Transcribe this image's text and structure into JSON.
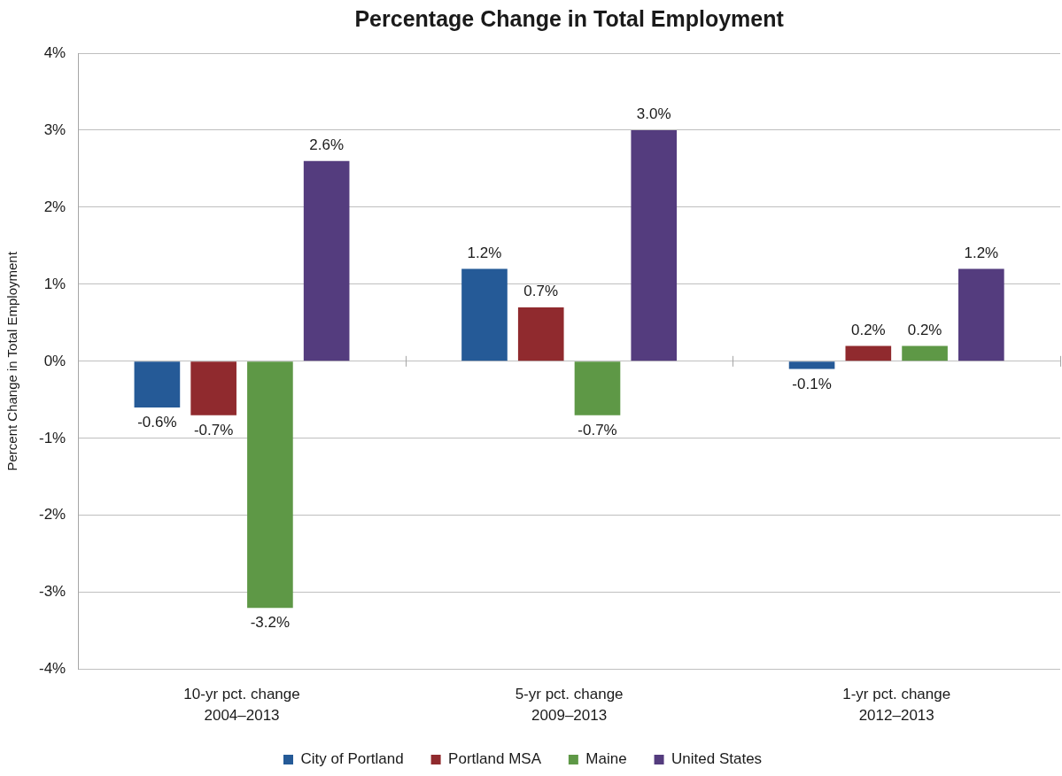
{
  "chart_data": {
    "type": "bar",
    "title": "Percentage Change in Total Employment",
    "ylabel": "Percent Change in Total Employment",
    "categories": [
      "10-yr pct. change\n2004–2013",
      "5-yr pct. change\n2009–2013",
      "1-yr pct. change\n2012–2013"
    ],
    "series": [
      {
        "name": "City of Portland",
        "color": "#255a97",
        "values": [
          -0.6,
          1.2,
          -0.1
        ],
        "value_labels": [
          "-0.6%",
          "1.2%",
          "-0.1%"
        ]
      },
      {
        "name": "Portland MSA",
        "color": "#902a2e",
        "values": [
          -0.7,
          0.7,
          0.2
        ],
        "value_labels": [
          "-0.7%",
          "0.7%",
          "0.2%"
        ]
      },
      {
        "name": "Maine",
        "color": "#5e9846",
        "values": [
          -3.2,
          -0.7,
          0.2
        ],
        "value_labels": [
          "-3.2%",
          "-0.7%",
          "0.2%"
        ]
      },
      {
        "name": "United States",
        "color": "#543c7e",
        "values": [
          2.6,
          3.0,
          1.2
        ],
        "value_labels": [
          "2.6%",
          "3.0%",
          "1.2%"
        ]
      }
    ],
    "ylim": [
      -4,
      4
    ],
    "yticks": [
      {
        "value": -4,
        "label": "-4%"
      },
      {
        "value": -3,
        "label": "-3%"
      },
      {
        "value": -2,
        "label": "-2%"
      },
      {
        "value": -1,
        "label": "-1%"
      },
      {
        "value": 0,
        "label": "0%"
      },
      {
        "value": 1,
        "label": "1%"
      },
      {
        "value": 2,
        "label": "2%"
      },
      {
        "value": 3,
        "label": "3%"
      },
      {
        "value": 4,
        "label": "4%"
      }
    ],
    "grid": "y",
    "legend": "bottom"
  }
}
